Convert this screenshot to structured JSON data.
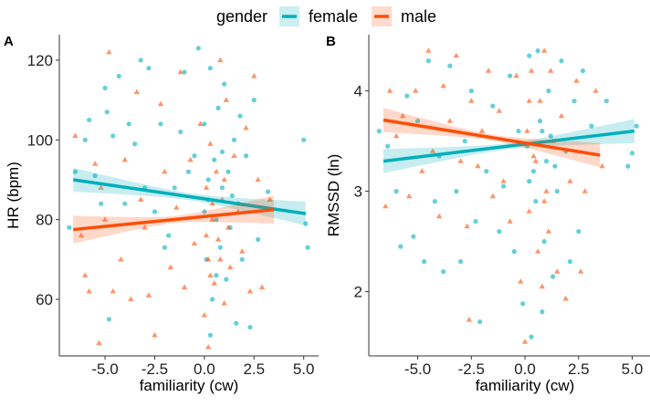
{
  "legend": {
    "title": "gender",
    "entries": [
      "female",
      "male"
    ]
  },
  "colors": {
    "female": "#00AFBB",
    "male": "#FC4E07"
  },
  "chart_data": [
    {
      "type": "scatter",
      "panel_label": "A",
      "xlabel": "familiarity (cw)",
      "ylabel": "HR (bpm)",
      "xlim": [
        -7.3,
        5.75
      ],
      "ylim": [
        45.8,
        126.4
      ],
      "xticks": [
        -5.0,
        -2.5,
        0.0,
        2.5,
        5.0
      ],
      "xtick_labels": [
        "-5.0",
        "-2.5",
        "0.0",
        "2.5",
        "5.0"
      ],
      "yticks": [
        60,
        80,
        100,
        120
      ],
      "ytick_labels": [
        "60",
        "80",
        "100",
        "120"
      ],
      "series": [
        {
          "name": "female",
          "marker": "circle",
          "fit": {
            "x": [
              -6.6,
              5.1
            ],
            "y": [
              90.0,
              81.5
            ],
            "ci_half_min": 0.9,
            "ci_half_end": 3.0
          },
          "points": [
            [
              -6.8,
              78
            ],
            [
              -6.5,
              92
            ],
            [
              -6,
              100
            ],
            [
              -5.8,
              105
            ],
            [
              -5.5,
              91
            ],
            [
              -5.2,
              84
            ],
            [
              -5,
              113
            ],
            [
              -4.9,
              107
            ],
            [
              -4.6,
              101
            ],
            [
              -4.3,
              116
            ],
            [
              -4,
              84
            ],
            [
              -3.8,
              104
            ],
            [
              -3.5,
              99
            ],
            [
              -3.2,
              120
            ],
            [
              -3,
              88
            ],
            [
              -2.8,
              118
            ],
            [
              -2.5,
              82
            ],
            [
              -2.2,
              104
            ],
            [
              -2,
              73
            ],
            [
              -1.8,
              76
            ],
            [
              -1.5,
              88
            ],
            [
              -1.2,
              102
            ],
            [
              -1,
              117
            ],
            [
              -0.8,
              92
            ],
            [
              -0.5,
              96
            ],
            [
              -0.3,
              123
            ],
            [
              0,
              104
            ],
            [
              0.1,
              70
            ],
            [
              0.2,
              85
            ],
            [
              0.3,
              118
            ],
            [
              0.4,
              60
            ],
            [
              0.5,
              95
            ],
            [
              0.6,
              80
            ],
            [
              0.7,
              108
            ],
            [
              0.8,
              73
            ],
            [
              0.9,
              88
            ],
            [
              1,
              114
            ],
            [
              1.1,
              65
            ],
            [
              1.2,
              92
            ],
            [
              1.3,
              78
            ],
            [
              1.5,
              100
            ],
            [
              1.7,
              84
            ],
            [
              1.9,
              70
            ],
            [
              2.1,
              96
            ],
            [
              2.3,
              53
            ],
            [
              2.5,
              110
            ],
            [
              2.7,
              75
            ],
            [
              3.2,
              87
            ],
            [
              5,
              100
            ],
            [
              5.1,
              79
            ],
            [
              5.2,
              73
            ],
            [
              -4.8,
              55
            ],
            [
              0.3,
              51
            ],
            [
              1.6,
              54
            ],
            [
              0.2,
              90
            ],
            [
              0.9,
              97
            ],
            [
              1.4,
              86
            ],
            [
              0.6,
              66
            ],
            [
              1.8,
              106
            ],
            [
              0.0,
              82
            ]
          ]
        },
        {
          "name": "male",
          "marker": "triangle",
          "fit": {
            "x": [
              -6.6,
              3.5
            ],
            "y": [
              77.5,
              82.5
            ],
            "ci_half_min": 0.9,
            "ci_half_end": 3.5
          },
          "points": [
            [
              -6.5,
              101
            ],
            [
              -6.2,
              76
            ],
            [
              -6,
              66
            ],
            [
              -5.8,
              62
            ],
            [
              -5.5,
              94
            ],
            [
              -5.2,
              88
            ],
            [
              -5,
              80
            ],
            [
              -4.8,
              122
            ],
            [
              -4.6,
              62
            ],
            [
              -4.2,
              70
            ],
            [
              -4,
              95
            ],
            [
              -3.7,
              60
            ],
            [
              -3.4,
              112
            ],
            [
              -3.2,
              85
            ],
            [
              -3,
              78
            ],
            [
              -2.8,
              61
            ],
            [
              -2.5,
              51
            ],
            [
              -2.2,
              109
            ],
            [
              -2,
              92
            ],
            [
              -1.7,
              68
            ],
            [
              -1.4,
              83
            ],
            [
              -1.2,
              117
            ],
            [
              -1,
              63
            ],
            [
              -0.7,
              95
            ],
            [
              -0.5,
              74
            ],
            [
              -0.2,
              104
            ],
            [
              0,
              56
            ],
            [
              0.1,
              88
            ],
            [
              0.2,
              70
            ],
            [
              0.3,
              99
            ],
            [
              0.4,
              80
            ],
            [
              0.5,
              64
            ],
            [
              0.6,
              92
            ],
            [
              0.7,
              75
            ],
            [
              0.8,
              120
            ],
            [
              0.9,
              85
            ],
            [
              1,
              59
            ],
            [
              1.1,
              110
            ],
            [
              1.2,
              78
            ],
            [
              1.3,
              68
            ],
            [
              1.5,
              96
            ],
            [
              1.7,
              82
            ],
            [
              1.9,
              72
            ],
            [
              2.1,
              103
            ],
            [
              2.3,
              62
            ],
            [
              2.5,
              116
            ],
            [
              2.7,
              90
            ],
            [
              2.9,
              63
            ],
            [
              3.3,
              85
            ],
            [
              -5.3,
              49
            ],
            [
              0.2,
              48
            ],
            [
              0.1,
              76
            ],
            [
              0.4,
              84
            ],
            [
              0.8,
              70
            ],
            [
              1.0,
              90
            ],
            [
              0.3,
              66
            ]
          ]
        }
      ]
    },
    {
      "type": "scatter",
      "panel_label": "B",
      "xlabel": "familiarity (cw)",
      "ylabel": "RMSSD (ln)",
      "xlim": [
        -7.28,
        5.83
      ],
      "ylim": [
        1.36,
        4.56
      ],
      "xticks": [
        -5.0,
        -2.5,
        0.0,
        2.5,
        5.0
      ],
      "xtick_labels": [
        "-5.0",
        "-2.5",
        "0.0",
        "2.5",
        "5.0"
      ],
      "yticks": [
        2,
        3,
        4
      ],
      "ytick_labels": [
        "2",
        "3",
        "4"
      ],
      "series": [
        {
          "name": "female",
          "marker": "circle",
          "fit": {
            "x": [
              -6.6,
              5.1
            ],
            "y": [
              3.3,
              3.6
            ],
            "ci_half_min": 0.03,
            "ci_half_end": 0.12
          },
          "points": [
            [
              -6.8,
              3.6
            ],
            [
              -6.4,
              3.45
            ],
            [
              -6,
              3.0
            ],
            [
              -5.8,
              2.45
            ],
            [
              -5.5,
              3.95
            ],
            [
              -5.2,
              2.55
            ],
            [
              -5,
              3.7
            ],
            [
              -4.7,
              2.3
            ],
            [
              -4.5,
              4.3
            ],
            [
              -4.2,
              2.9
            ],
            [
              -4,
              3.35
            ],
            [
              -3.8,
              2.2
            ],
            [
              -3.5,
              4.25
            ],
            [
              -3.2,
              3.0
            ],
            [
              -3,
              2.3
            ],
            [
              -2.8,
              3.5
            ],
            [
              -2.5,
              4.0
            ],
            [
              -2.3,
              2.7
            ],
            [
              -2.1,
              1.7
            ],
            [
              -1.8,
              3.2
            ],
            [
              -1.5,
              3.85
            ],
            [
              -1.2,
              2.6
            ],
            [
              -1,
              3.05
            ],
            [
              -0.7,
              4.15
            ],
            [
              -0.5,
              2.4
            ],
            [
              -0.3,
              3.6
            ],
            [
              -0.1,
              1.88
            ],
            [
              0.1,
              3.45
            ],
            [
              0.2,
              4.35
            ],
            [
              0.3,
              1.55
            ],
            [
              0.4,
              3.2
            ],
            [
              0.5,
              2.9
            ],
            [
              0.6,
              4.4
            ],
            [
              0.7,
              3.7
            ],
            [
              0.8,
              1.8
            ],
            [
              0.9,
              2.5
            ],
            [
              1,
              3.3
            ],
            [
              1.1,
              4.0
            ],
            [
              1.2,
              3.55
            ],
            [
              1.3,
              2.15
            ],
            [
              1.5,
              3.0
            ],
            [
              1.7,
              4.3
            ],
            [
              1.9,
              3.4
            ],
            [
              2.1,
              2.3
            ],
            [
              2.3,
              3.9
            ],
            [
              2.5,
              2.6
            ],
            [
              2.7,
              4.2
            ],
            [
              3.1,
              3.65
            ],
            [
              3.8,
              3.9
            ],
            [
              4.8,
              3.25
            ],
            [
              5.0,
              3.38
            ],
            [
              5.2,
              3.65
            ],
            [
              0.2,
              3.1
            ],
            [
              0.8,
              3.6
            ],
            [
              1.4,
              3.25
            ]
          ]
        },
        {
          "name": "male",
          "marker": "triangle",
          "fit": {
            "x": [
              -6.6,
              3.5
            ],
            "y": [
              3.71,
              3.36
            ],
            "ci_half_min": 0.03,
            "ci_half_end": 0.12
          },
          "points": [
            [
              -6.5,
              2.85
            ],
            [
              -6.3,
              4.0
            ],
            [
              -6,
              3.55
            ],
            [
              -5.7,
              3.75
            ],
            [
              -5.4,
              2.95
            ],
            [
              -5.1,
              4.0
            ],
            [
              -4.8,
              3.2
            ],
            [
              -4.5,
              4.4
            ],
            [
              -4.3,
              3.4
            ],
            [
              -4,
              2.75
            ],
            [
              -3.8,
              4.05
            ],
            [
              -3.5,
              3.7
            ],
            [
              -3.2,
              4.35
            ],
            [
              -3,
              3.3
            ],
            [
              -2.7,
              2.65
            ],
            [
              -2.5,
              3.9
            ],
            [
              -2.2,
              3.25
            ],
            [
              -2,
              3.6
            ],
            [
              -1.7,
              4.2
            ],
            [
              -1.5,
              2.95
            ],
            [
              -1.2,
              3.8
            ],
            [
              -1,
              3.1
            ],
            [
              -0.7,
              2.7
            ],
            [
              -0.4,
              4.15
            ],
            [
              -0.2,
              2.1
            ],
            [
              0,
              1.5
            ],
            [
              0.1,
              3.6
            ],
            [
              0.2,
              2.8
            ],
            [
              0.3,
              4.2
            ],
            [
              0.4,
              3.35
            ],
            [
              0.6,
              2.4
            ],
            [
              0.7,
              3.9
            ],
            [
              0.8,
              2.05
            ],
            [
              0.9,
              4.4
            ],
            [
              1,
              3.0
            ],
            [
              1.1,
              2.6
            ],
            [
              1.2,
              4.2
            ],
            [
              1.3,
              3.5
            ],
            [
              1.5,
              2.2
            ],
            [
              1.7,
              3.75
            ],
            [
              1.9,
              1.93
            ],
            [
              2.1,
              3.1
            ],
            [
              2.4,
              4.1
            ],
            [
              2.6,
              2.2
            ],
            [
              2.8,
              3.0
            ],
            [
              3.3,
              4.0
            ],
            [
              3.6,
              3.25
            ],
            [
              -2.6,
              1.72
            ],
            [
              0.2,
              3.9
            ],
            [
              0.5,
              3.3
            ],
            [
              0.9,
              2.9
            ]
          ]
        }
      ]
    }
  ]
}
